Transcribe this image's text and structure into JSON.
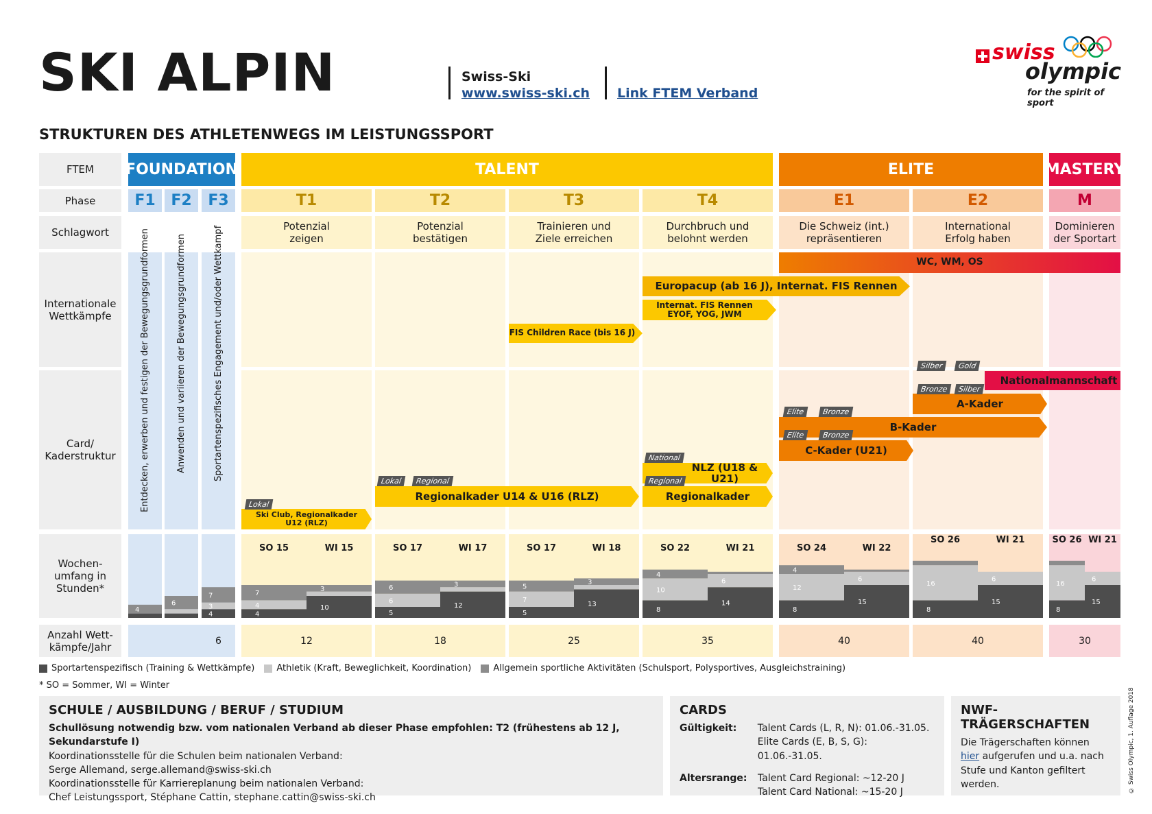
{
  "title": "SKI ALPIN",
  "subtitle": "STRUKTUREN DES ATHLETENWEGS IM LEISTUNGSSPORT",
  "header": {
    "org_name": "Swiss-Ski",
    "org_url": "www.swiss-ski.ch",
    "ftem_link": "Link FTEM Verband"
  },
  "logo": {
    "brand_swiss": "swiss",
    "brand_olympic": "olympic",
    "tagline": "for the spirit of sport",
    "colors": {
      "red": "#e3001b",
      "rings": [
        "#0081c8",
        "#fcb131",
        "#000000",
        "#00a651",
        "#ee334e"
      ]
    }
  },
  "row_labels": {
    "ftem": "FTEM",
    "phase": "Phase",
    "schlagwort": "Schlagwort",
    "international": "Internationale Wettkämpfe",
    "card": "Card/ Kaderstruktur",
    "wochen": "Wochen- umfang in Stunden*",
    "anzahl": "Anzahl Wett- kämpfe/Jahr"
  },
  "ftem": [
    {
      "name": "FOUNDATION",
      "color": "#1d7fc4"
    },
    {
      "name": "TALENT",
      "color": "#fcc800"
    },
    {
      "name": "ELITE",
      "color": "#ee7d00"
    },
    {
      "name": "MASTERY",
      "color": "#e30f45"
    }
  ],
  "phases": [
    "F1",
    "F2",
    "F3",
    "T1",
    "T2",
    "T3",
    "T4",
    "E1",
    "E2",
    "M"
  ],
  "schlagworte": [
    "Potenzial zeigen",
    "Potenzial bestätigen",
    "Trainieren und Ziele erreichen",
    "Durchbruch und belohnt werden",
    "Die Schweiz (int.) repräsentieren",
    "International Erfolg haben",
    "Dominieren der Sportart"
  ],
  "foundation_vertical": [
    "Entdecken, erwerben und festigen der Bewegungsgrundformen",
    "Anwenden und variieren der Bewegungsgrundformen",
    "Sportartenspezifisches Engagement und/oder Wettkampf"
  ],
  "international": {
    "wc": "WC, WM, OS",
    "europacup": "Europacup (ab 16 J), Internat. FIS Rennen",
    "fis_rennen": "Internat. FIS Rennen EYOF, YOG, JWM",
    "children": "FIS Children Race (bis 16 J)"
  },
  "kader": {
    "national": "Nationalmannschaft",
    "a": "A-Kader",
    "b": "B-Kader",
    "c": "C-Kader (U21)",
    "nlz": "NLZ (U18 & U21)",
    "regional": "Regionalkader",
    "rlz": "Regionalkader U14 & U16 (RLZ)",
    "club": "Ski Club, Regionalkader U12 (RLZ)"
  },
  "tags": {
    "silber": "Silber",
    "gold": "Gold",
    "bronze": "Bronze",
    "elite": "Elite",
    "national": "National",
    "regional": "Regional",
    "lokal": "Lokal"
  },
  "season_labels": [
    "SO 15",
    "WI 15",
    "SO 17",
    "WI 17",
    "SO 17",
    "WI 18",
    "SO 22",
    "WI 21",
    "SO 24",
    "WI 22",
    "SO 26",
    "WI 21",
    "SO 26",
    "WI 21"
  ],
  "chart_data": {
    "type": "bar",
    "stacked": true,
    "categories": [
      "F1",
      "F2",
      "F3",
      "T1 SO",
      "T1 WI",
      "T2 SO",
      "T2 WI",
      "T3 SO",
      "T3 WI",
      "T4 SO",
      "T4 WI",
      "E1 SO",
      "E1 WI",
      "E2 SO",
      "E2 WI",
      "M SO",
      "M WI"
    ],
    "series": [
      {
        "name": "Sportartenspezifisch (Training & Wettkämpfe)",
        "color": "#4d4d4d",
        "values": [
          2,
          2,
          4,
          4,
          10,
          5,
          12,
          5,
          13,
          8,
          14,
          8,
          15,
          8,
          15,
          8,
          15
        ]
      },
      {
        "name": "Athletik (Kraft, Beweglichkeit, Koordination)",
        "color": "#c8c8c8",
        "values": [
          0,
          2,
          3,
          4,
          2,
          6,
          2,
          7,
          2,
          10,
          6,
          12,
          6,
          16,
          6,
          16,
          6
        ]
      },
      {
        "name": "Allgemein sportliche Aktivitäten (Schulsport, Polysportives, Ausgleichstraining)",
        "color": "#8c8c8c",
        "values": [
          4,
          6,
          7,
          7,
          3,
          6,
          3,
          5,
          3,
          4,
          1,
          4,
          1,
          2,
          0,
          2,
          0
        ]
      }
    ],
    "ylim": [
      0,
      30
    ]
  },
  "anzahl": [
    "6",
    "12",
    "18",
    "25",
    "35",
    "40",
    "40",
    "30"
  ],
  "legend_note": "* SO = Sommer, WI = Winter",
  "panels": {
    "schule": {
      "title": "SCHULE / AUSBILDUNG / BERUF / STUDIUM",
      "bold_line": "Schullösung notwendig bzw. vom nationalen Verband ab dieser Phase empfohlen: T2 (frühestens ab 12 J, Sekundarstufe I)",
      "lines": [
        "Koordinationsstelle für die Schulen beim nationalen Verband:",
        "Serge Allemand, serge.allemand@swiss-ski.ch",
        "Koordinationsstelle für Karriereplanung beim nationalen Verband:",
        "Chef Leistungssport, Stéphane Cattin, stephane.cattin@swiss-ski.ch"
      ]
    },
    "cards": {
      "title": "CARDS",
      "gueltigkeit_label": "Gültigkeit:",
      "gueltigkeit_1": "Talent Cards (L, R, N): 01.06.-31.05.",
      "gueltigkeit_2": "Elite Cards (E, B, S, G): 01.06.-31.05.",
      "alter_label": "Altersrange:",
      "alter_1": "Talent Card Regional: ~12-20 J",
      "alter_2": "Talent Card National: ~15-20 J"
    },
    "nwf": {
      "title": "NWF-TRÄGERSCHAFTEN",
      "text_before": "Die Trägerschaften können ",
      "link": "hier",
      "text_after": " aufgerufen und u.a. nach Stufe und Kanton gefiltert werden."
    }
  },
  "copyright": "© Swiss Olympic, 1. Auflage 2018"
}
